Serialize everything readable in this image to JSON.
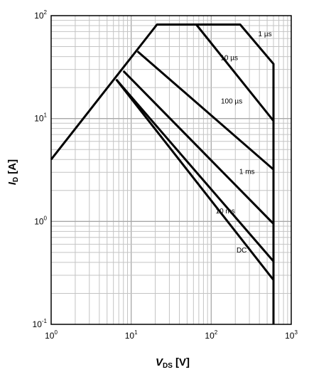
{
  "chart_data": {
    "type": "line",
    "title": "",
    "xscale": "log",
    "yscale": "log",
    "xlim": [
      1,
      1000
    ],
    "ylim": [
      0.1,
      100
    ],
    "grid": true,
    "x_ticks": [
      {
        "base": "10",
        "exp": "0",
        "value": 1
      },
      {
        "base": "10",
        "exp": "1",
        "value": 10
      },
      {
        "base": "10",
        "exp": "2",
        "value": 100
      },
      {
        "base": "10",
        "exp": "3",
        "value": 1000
      }
    ],
    "y_ticks": [
      {
        "base": "10",
        "exp": "-1",
        "value": 0.1
      },
      {
        "base": "10",
        "exp": "0",
        "value": 1
      },
      {
        "base": "10",
        "exp": "1",
        "value": 10
      },
      {
        "base": "10",
        "exp": "2",
        "value": 100
      }
    ],
    "xlabel": {
      "main": "V",
      "sub": "DS",
      "unit": "[V]"
    },
    "ylabel": {
      "main": "I",
      "sub": "D",
      "unit": "[A]"
    },
    "series": [
      {
        "name": "1 µs",
        "label_at": [
          470,
          63
        ],
        "points": [
          [
            1,
            4
          ],
          [
            21,
            82
          ],
          [
            230,
            82
          ],
          [
            600,
            34
          ],
          [
            600,
            0.1
          ]
        ]
      },
      {
        "name": "10 µs",
        "label_at": [
          168,
          37
        ],
        "points": [
          [
            23,
            82
          ],
          [
            65,
            82
          ],
          [
            600,
            9.5
          ]
        ]
      },
      {
        "name": "100 µs",
        "label_at": [
          180,
          14
        ],
        "points": [
          [
            12,
            45
          ],
          [
            600,
            3.2
          ]
        ]
      },
      {
        "name": "1 ms",
        "label_at": [
          280,
          2.9
        ],
        "points": [
          [
            8,
            29
          ],
          [
            600,
            0.95
          ]
        ]
      },
      {
        "name": "10 ms",
        "label_at": [
          150,
          1.2
        ],
        "points": [
          [
            6.5,
            24
          ],
          [
            600,
            0.41
          ]
        ]
      },
      {
        "name": "DC",
        "label_at": [
          240,
          0.5
        ],
        "points": [
          [
            6.5,
            24
          ],
          [
            600,
            0.27
          ]
        ]
      }
    ]
  }
}
